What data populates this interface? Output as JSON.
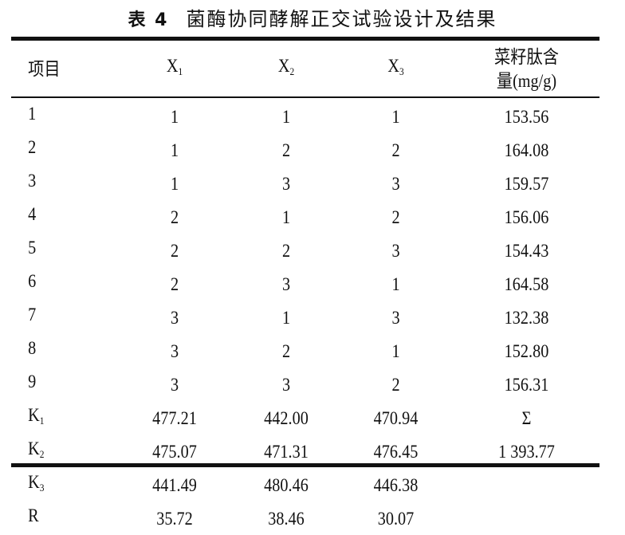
{
  "caption": {
    "number": "表 4",
    "text": "菌酶协同酵解正交试验设计及结果"
  },
  "table": {
    "headers": [
      {
        "base": "项目",
        "sub": ""
      },
      {
        "base": "X",
        "sub": "1"
      },
      {
        "base": "X",
        "sub": "2"
      },
      {
        "base": "X",
        "sub": "3"
      },
      {
        "base": "菜籽肽含",
        "line2": "量(mg/g)"
      }
    ],
    "rows": [
      {
        "label": "1",
        "sub": "",
        "cells": [
          "1",
          "1",
          "1",
          "153.56"
        ]
      },
      {
        "label": "2",
        "sub": "",
        "cells": [
          "1",
          "2",
          "2",
          "164.08"
        ]
      },
      {
        "label": "3",
        "sub": "",
        "cells": [
          "1",
          "3",
          "3",
          "159.57"
        ]
      },
      {
        "label": "4",
        "sub": "",
        "cells": [
          "2",
          "1",
          "2",
          "156.06"
        ]
      },
      {
        "label": "5",
        "sub": "",
        "cells": [
          "2",
          "2",
          "3",
          "154.43"
        ]
      },
      {
        "label": "6",
        "sub": "",
        "cells": [
          "2",
          "3",
          "1",
          "164.58"
        ]
      },
      {
        "label": "7",
        "sub": "",
        "cells": [
          "3",
          "1",
          "3",
          "132.38"
        ]
      },
      {
        "label": "8",
        "sub": "",
        "cells": [
          "3",
          "2",
          "1",
          "152.80"
        ]
      },
      {
        "label": "9",
        "sub": "",
        "cells": [
          "3",
          "3",
          "2",
          "156.31"
        ]
      },
      {
        "label": "K",
        "sub": "1",
        "cells": [
          "477.21",
          "442.00",
          "470.94",
          "Σ"
        ]
      },
      {
        "label": "K",
        "sub": "2",
        "cells": [
          "475.07",
          "471.31",
          "476.45",
          "1 393.77"
        ]
      },
      {
        "label": "K",
        "sub": "3",
        "cells": [
          "441.49",
          "480.46",
          "446.38",
          ""
        ]
      },
      {
        "label": "R",
        "sub": "",
        "cells": [
          "35.72",
          "38.46",
          "30.07",
          ""
        ]
      }
    ]
  }
}
